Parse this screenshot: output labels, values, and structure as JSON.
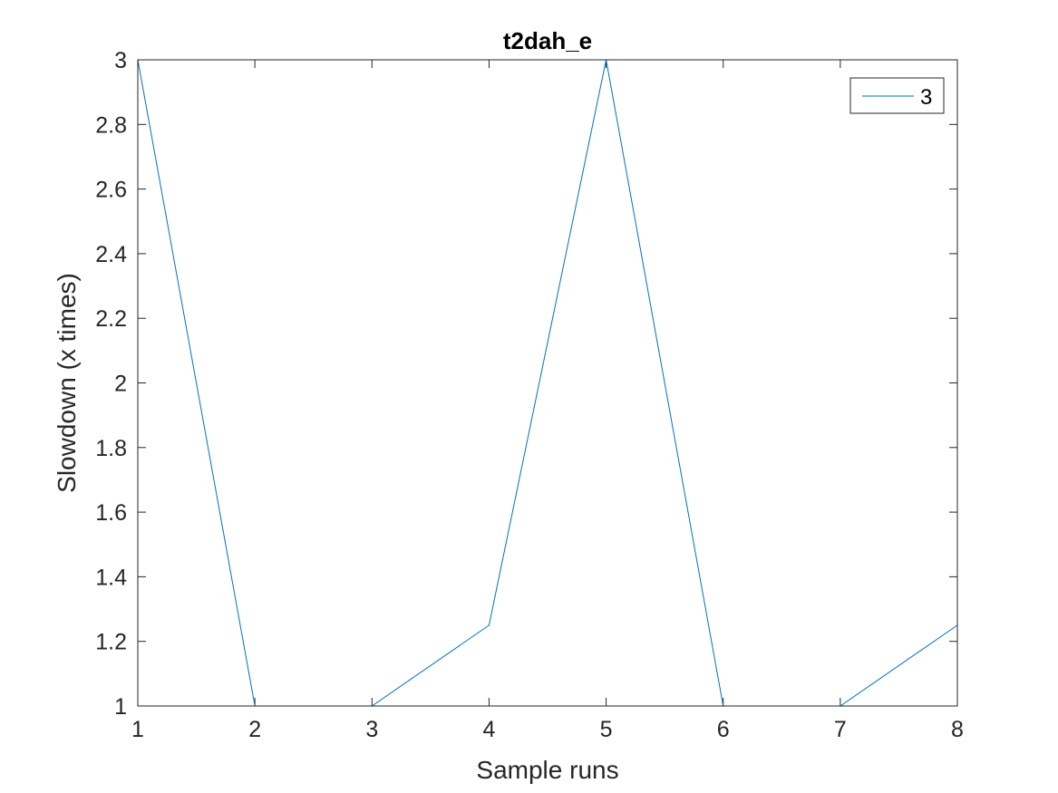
{
  "chart_data": {
    "type": "line",
    "title": "t2dah_e",
    "xlabel": "Sample runs",
    "ylabel": "Slowdown (x times)",
    "x": [
      1,
      2,
      3,
      4,
      5,
      6,
      7,
      8
    ],
    "xlim": [
      1,
      8
    ],
    "ylim": [
      1,
      3
    ],
    "xticks": [
      1,
      2,
      3,
      4,
      5,
      6,
      7,
      8
    ],
    "xtick_labels": [
      "1",
      "2",
      "3",
      "4",
      "5",
      "6",
      "7",
      "8"
    ],
    "yticks": [
      1,
      1.2,
      1.4,
      1.6,
      1.8,
      2,
      2.2,
      2.4,
      2.6,
      2.8,
      3
    ],
    "ytick_labels": [
      "1",
      "1.2",
      "1.4",
      "1.6",
      "1.8",
      "2",
      "2.2",
      "2.4",
      "2.6",
      "2.8",
      "3"
    ],
    "series": [
      {
        "name": "3",
        "color": "#0072BD",
        "values": [
          3,
          1,
          1,
          1.25,
          3,
          1,
          1,
          1.25
        ]
      }
    ],
    "grid": false,
    "legend_position": "top-right",
    "box": true
  }
}
